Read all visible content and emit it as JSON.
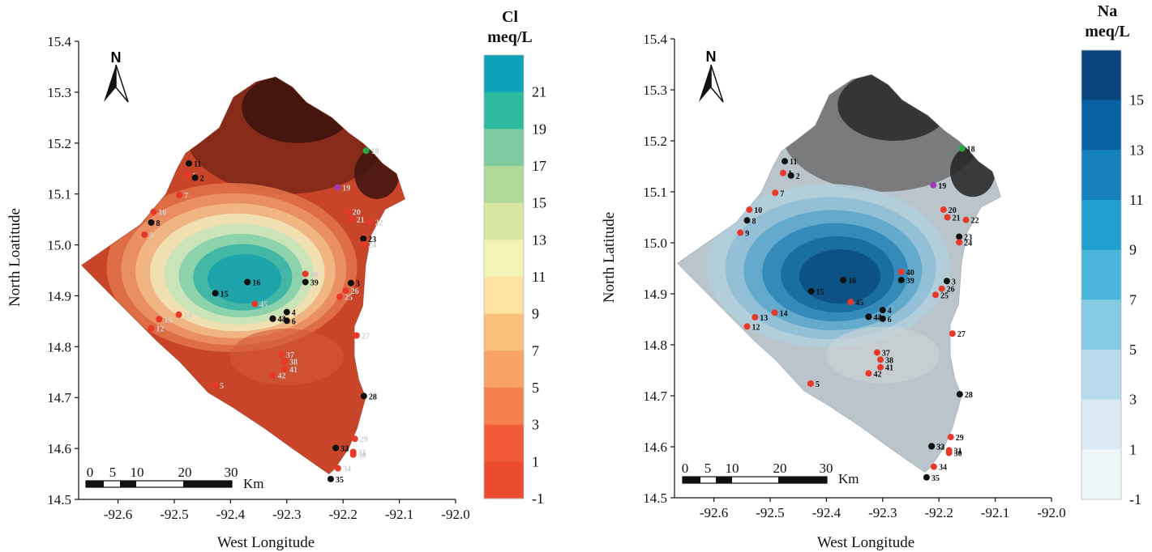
{
  "panels": [
    {
      "id": "cl",
      "theme": "red",
      "ylabel": "North Loatitude",
      "xlabel": "West Longitude",
      "colorbar_title_1": "Cl",
      "colorbar_title_2": "meq/L",
      "colorbar_ticks": [
        "21",
        "19",
        "17",
        "15",
        "13",
        "11",
        "9",
        "7",
        "5",
        "3",
        "1",
        "-1"
      ],
      "colorbar_colors": [
        "#0ba1b7",
        "#2dbba0",
        "#7dcb9e",
        "#b1da9a",
        "#d8e8a2",
        "#f3f3b6",
        "#fde3a1",
        "#fbc17c",
        "#f9a265",
        "#f57f4d",
        "#f05a36",
        "#ea4a2e"
      ],
      "label_color": "#cfcfcf",
      "contour_colors": [
        "#d24a2e",
        "#e07048",
        "#eb9466",
        "#f2b987",
        "#efe3b5",
        "#c5e3b8",
        "#85cfa9",
        "#3bb4a4",
        "#1aa1ab"
      ]
    },
    {
      "id": "na",
      "theme": "blue",
      "ylabel": "North Latitude",
      "xlabel": "West Longitude",
      "colorbar_title_1": "Na",
      "colorbar_title_2": "meq/L",
      "colorbar_ticks": [
        "15",
        "13",
        "11",
        "9",
        "7",
        "5",
        "3",
        "1",
        "-1"
      ],
      "colorbar_colors": [
        "#09457d",
        "#0a62a5",
        "#1582bd",
        "#21a0cf",
        "#4cb6da",
        "#86c9e3",
        "#b8dcee",
        "#daebf5",
        "#eef6fa"
      ],
      "label_color": "#111111",
      "contour_colors": [
        "#c7d0d6",
        "#b2cfdd",
        "#8fbfd6",
        "#5ea7cb",
        "#2f87b8",
        "#166aa0",
        "#0c4f82"
      ]
    }
  ],
  "axes": {
    "x_ticks": [
      "-92.6",
      "-92.5",
      "-92.4",
      "-92.3",
      "-92.2",
      "-92.1",
      "-92.0"
    ],
    "y_ticks": [
      "15.4",
      "15.3",
      "15.2",
      "15.1",
      "15.0",
      "14.9",
      "14.8",
      "14.7",
      "14.6",
      "14.5"
    ],
    "xlim": [
      -92.67,
      -92.0
    ],
    "ylim": [
      14.5,
      15.4
    ]
  },
  "north_arrow": "N",
  "scale_bar": {
    "labels": [
      "0",
      "5",
      "10",
      "20",
      "30"
    ],
    "unit": "Km"
  },
  "wells": [
    {
      "id": "1",
      "lon": -92.477,
      "lat": 15.137,
      "color": "red"
    },
    {
      "id": "2",
      "lon": -92.463,
      "lat": 15.132,
      "color": "black"
    },
    {
      "id": "3",
      "lon": -92.186,
      "lat": 14.925,
      "color": "black"
    },
    {
      "id": "4",
      "lon": -92.3,
      "lat": 14.868,
      "color": "black"
    },
    {
      "id": "5",
      "lon": -92.428,
      "lat": 14.724,
      "color": "red"
    },
    {
      "id": "6",
      "lon": -92.3,
      "lat": 14.851,
      "color": "black"
    },
    {
      "id": "7",
      "lon": -92.491,
      "lat": 15.098,
      "color": "red"
    },
    {
      "id": "8",
      "lon": -92.541,
      "lat": 15.044,
      "color": "black"
    },
    {
      "id": "9",
      "lon": -92.553,
      "lat": 15.02,
      "color": "red"
    },
    {
      "id": "10",
      "lon": -92.537,
      "lat": 15.065,
      "color": "red"
    },
    {
      "id": "11",
      "lon": -92.474,
      "lat": 15.16,
      "color": "black"
    },
    {
      "id": "12",
      "lon": -92.541,
      "lat": 14.836,
      "color": "red"
    },
    {
      "id": "13",
      "lon": -92.527,
      "lat": 14.854,
      "color": "red"
    },
    {
      "id": "14",
      "lon": -92.492,
      "lat": 14.863,
      "color": "red"
    },
    {
      "id": "15",
      "lon": -92.427,
      "lat": 14.905,
      "color": "black"
    },
    {
      "id": "16",
      "lon": -92.37,
      "lat": 14.927,
      "color": "black"
    },
    {
      "id": "18",
      "lon": -92.159,
      "lat": 15.185,
      "color": "green"
    },
    {
      "id": "19",
      "lon": -92.21,
      "lat": 15.113,
      "color": "purple"
    },
    {
      "id": "20",
      "lon": -92.192,
      "lat": 15.065,
      "color": "red"
    },
    {
      "id": "21",
      "lon": -92.185,
      "lat": 15.05,
      "color": "red"
    },
    {
      "id": "22",
      "lon": -92.152,
      "lat": 15.045,
      "color": "red"
    },
    {
      "id": "23",
      "lon": -92.164,
      "lat": 15.012,
      "color": "black"
    },
    {
      "id": "24",
      "lon": -92.164,
      "lat": 15.001,
      "color": "red"
    },
    {
      "id": "25",
      "lon": -92.206,
      "lat": 14.898,
      "color": "red"
    },
    {
      "id": "26",
      "lon": -92.195,
      "lat": 14.91,
      "color": "red"
    },
    {
      "id": "27",
      "lon": -92.176,
      "lat": 14.822,
      "color": "red"
    },
    {
      "id": "28",
      "lon": -92.163,
      "lat": 14.703,
      "color": "black"
    },
    {
      "id": "29",
      "lon": -92.179,
      "lat": 14.619,
      "color": "red"
    },
    {
      "id": "30",
      "lon": -92.182,
      "lat": 14.588,
      "color": "red"
    },
    {
      "id": "31",
      "lon": -92.182,
      "lat": 14.593,
      "color": "red"
    },
    {
      "id": "32",
      "lon": -92.213,
      "lat": 14.601,
      "color": "black"
    },
    {
      "id": "33",
      "lon": -92.213,
      "lat": 14.601,
      "color": "black"
    },
    {
      "id": "34",
      "lon": -92.209,
      "lat": 14.561,
      "color": "red"
    },
    {
      "id": "35",
      "lon": -92.222,
      "lat": 14.54,
      "color": "black"
    },
    {
      "id": "37",
      "lon": -92.31,
      "lat": 14.785,
      "color": "red"
    },
    {
      "id": "38",
      "lon": -92.304,
      "lat": 14.771,
      "color": "red"
    },
    {
      "id": "39",
      "lon": -92.267,
      "lat": 14.927,
      "color": "black"
    },
    {
      "id": "40",
      "lon": -92.267,
      "lat": 14.943,
      "color": "red"
    },
    {
      "id": "41",
      "lon": -92.304,
      "lat": 14.756,
      "color": "red"
    },
    {
      "id": "42",
      "lon": -92.325,
      "lat": 14.744,
      "color": "red"
    },
    {
      "id": "43",
      "lon": -92.325,
      "lat": 14.855,
      "color": "black"
    },
    {
      "id": "44",
      "lon": -92.325,
      "lat": 14.855,
      "color": "black"
    },
    {
      "id": "45",
      "lon": -92.357,
      "lat": 14.884,
      "color": "red"
    }
  ]
}
